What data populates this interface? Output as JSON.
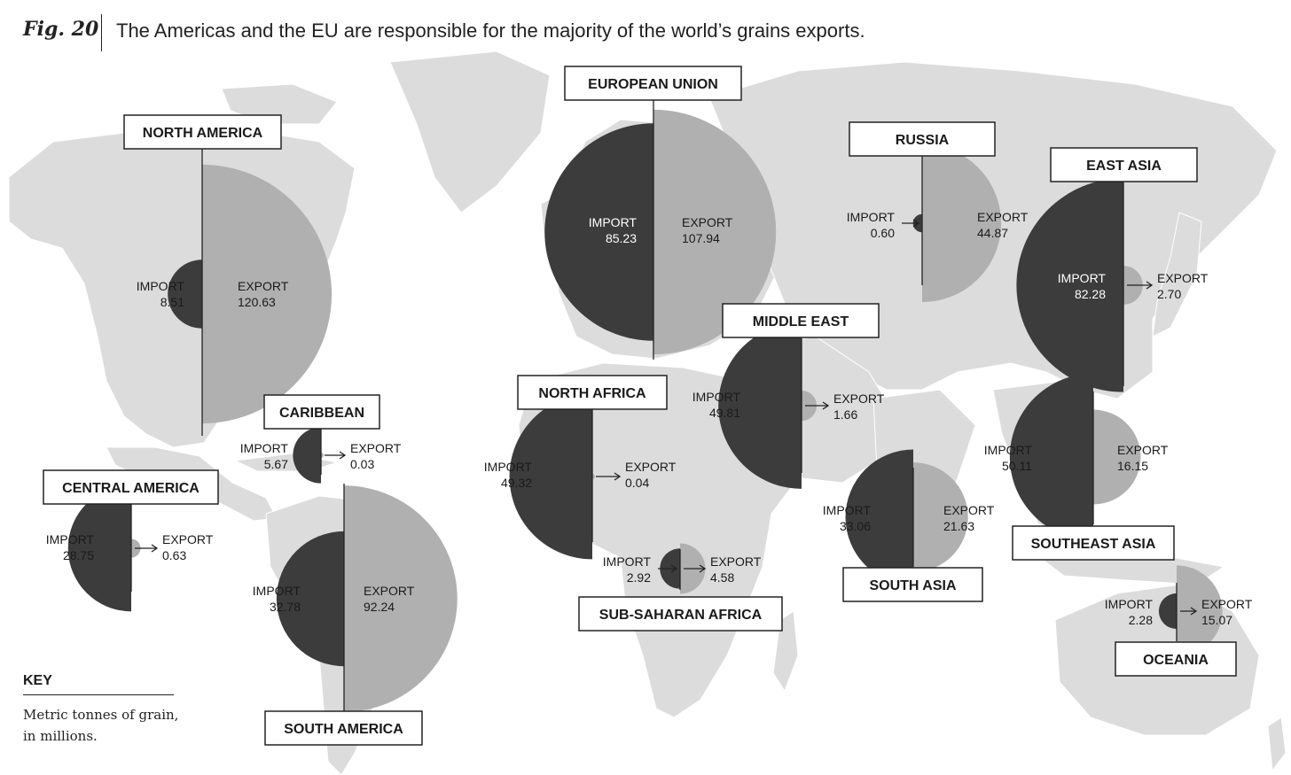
{
  "figure": {
    "label": "Fig. 20",
    "title": "The Americas and the EU are responsible for the majority of the world’s grains exports."
  },
  "key": {
    "title": "KEY",
    "line1": "Metric tonnes of grain,",
    "line2": "in millions."
  },
  "labels": {
    "import": "IMPORT",
    "export": "EXPORT"
  },
  "colors": {
    "land": "#dcdcdc",
    "border": "#ffffff",
    "import": "#3c3c3c",
    "export": "#b0b0b0",
    "line": "#222222",
    "label_border": "#222222"
  },
  "regions": [
    {
      "name": "NORTH AMERICA",
      "import": "8.51",
      "export": "120.63"
    },
    {
      "name": "EUROPEAN UNION",
      "import": "85.23",
      "export": "107.94"
    },
    {
      "name": "RUSSIA",
      "import": "0.60",
      "export": "44.87"
    },
    {
      "name": "EAST ASIA",
      "import": "82.28",
      "export": "2.70"
    },
    {
      "name": "MIDDLE EAST",
      "import": "49.81",
      "export": "1.66"
    },
    {
      "name": "NORTH AFRICA",
      "import": "49.32",
      "export": "0.04"
    },
    {
      "name": "CARIBBEAN",
      "import": "5.67",
      "export": "0.03"
    },
    {
      "name": "CENTRAL AMERICA",
      "import": "28.75",
      "export": "0.63"
    },
    {
      "name": "SOUTH AMERICA",
      "import": "32.78",
      "export": "92.24"
    },
    {
      "name": "SUB-SAHARAN AFRICA",
      "import": "2.92",
      "export": "4.58"
    },
    {
      "name": "SOUTH ASIA",
      "import": "33.06",
      "export": "21.63"
    },
    {
      "name": "SOUTHEAST ASIA",
      "import": "50.11",
      "export": "16.15"
    },
    {
      "name": "OCEANIA",
      "import": "2.28",
      "export": "15.07"
    }
  ]
}
